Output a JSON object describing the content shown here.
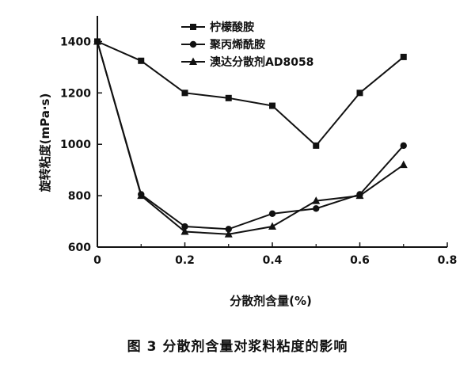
{
  "caption": "图 3   分散剂含量对浆料粘度的影响",
  "chart_data": {
    "type": "line",
    "xlabel": "分散剂含量(%)",
    "ylabel": "旋转粘度(mPa·s)",
    "xlim": [
      0,
      0.8
    ],
    "ylim": [
      600,
      1500
    ],
    "x_ticks": [
      "0",
      "0.2",
      "0.4",
      "0.6",
      "0.8"
    ],
    "y_ticks": [
      "600",
      "800",
      "1000",
      "1200",
      "1400"
    ],
    "x_tick_values": [
      0,
      0.2,
      0.4,
      0.6,
      0.8
    ],
    "y_tick_values": [
      600,
      800,
      1000,
      1200,
      1400
    ],
    "grid": false,
    "legend_position": "top-right",
    "series": [
      {
        "name": "柠檬酸胺",
        "marker": "square",
        "x": [
          0,
          0.1,
          0.2,
          0.3,
          0.4,
          0.5,
          0.6,
          0.7
        ],
        "y": [
          1400,
          1325,
          1200,
          1180,
          1150,
          995,
          1200,
          1340
        ]
      },
      {
        "name": "聚丙烯酰胺",
        "marker": "circle",
        "x": [
          0,
          0.1,
          0.2,
          0.3,
          0.4,
          0.5,
          0.6,
          0.7
        ],
        "y": [
          1400,
          805,
          680,
          670,
          730,
          750,
          805,
          995
        ]
      },
      {
        "name": "澳达分散剂AD8058",
        "marker": "triangle",
        "x": [
          0,
          0.1,
          0.2,
          0.3,
          0.4,
          0.5,
          0.6,
          0.7
        ],
        "y": [
          1400,
          800,
          660,
          650,
          680,
          780,
          800,
          920
        ]
      }
    ]
  }
}
